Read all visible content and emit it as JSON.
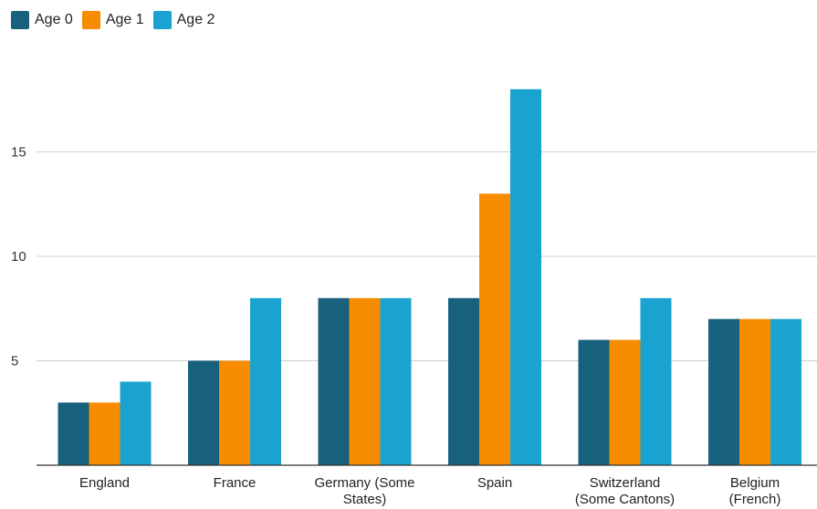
{
  "chart_data": {
    "type": "bar",
    "categories": [
      [
        "England"
      ],
      [
        "France"
      ],
      [
        "Germany (Some",
        "States)"
      ],
      [
        "Spain"
      ],
      [
        "Switzerland",
        "(Some Cantons)"
      ],
      [
        "Belgium",
        "(French)"
      ]
    ],
    "series": [
      {
        "name": "Age 0",
        "color": "#17607e",
        "values": [
          3,
          5,
          8,
          8,
          6,
          7
        ]
      },
      {
        "name": "Age 1",
        "color": "#f78c00",
        "values": [
          3,
          5,
          8,
          13,
          6,
          7
        ]
      },
      {
        "name": "Age 2",
        "color": "#1aa3d0",
        "values": [
          4,
          8,
          8,
          18,
          8,
          7
        ]
      }
    ],
    "yticks": [
      5,
      10,
      15
    ],
    "ylim": [
      0,
      20
    ],
    "grid": true,
    "legend_position": "top-left",
    "title": "",
    "xlabel": "",
    "ylabel": ""
  }
}
